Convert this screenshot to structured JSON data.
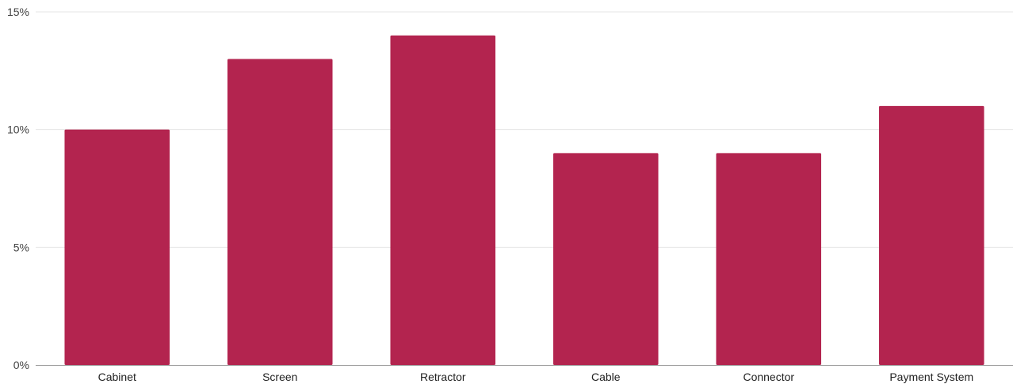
{
  "chart_data": {
    "type": "bar",
    "title": "",
    "xlabel": "",
    "ylabel": "",
    "categories": [
      "Cabinet",
      "Screen",
      "Retractor",
      "Cable",
      "Connector",
      "Payment System"
    ],
    "values": [
      10,
      13,
      14,
      9,
      9,
      11
    ],
    "value_unit": "%",
    "ylim": [
      0,
      15
    ],
    "yticks": [
      0,
      5,
      10,
      15
    ],
    "ytick_labels": [
      "0%",
      "5%",
      "10%",
      "15%"
    ],
    "grid": true,
    "legend": "none",
    "bar_color": "#B3244F",
    "grid_color": "#E6E6E6",
    "axis_color": "#9E9E9E"
  }
}
